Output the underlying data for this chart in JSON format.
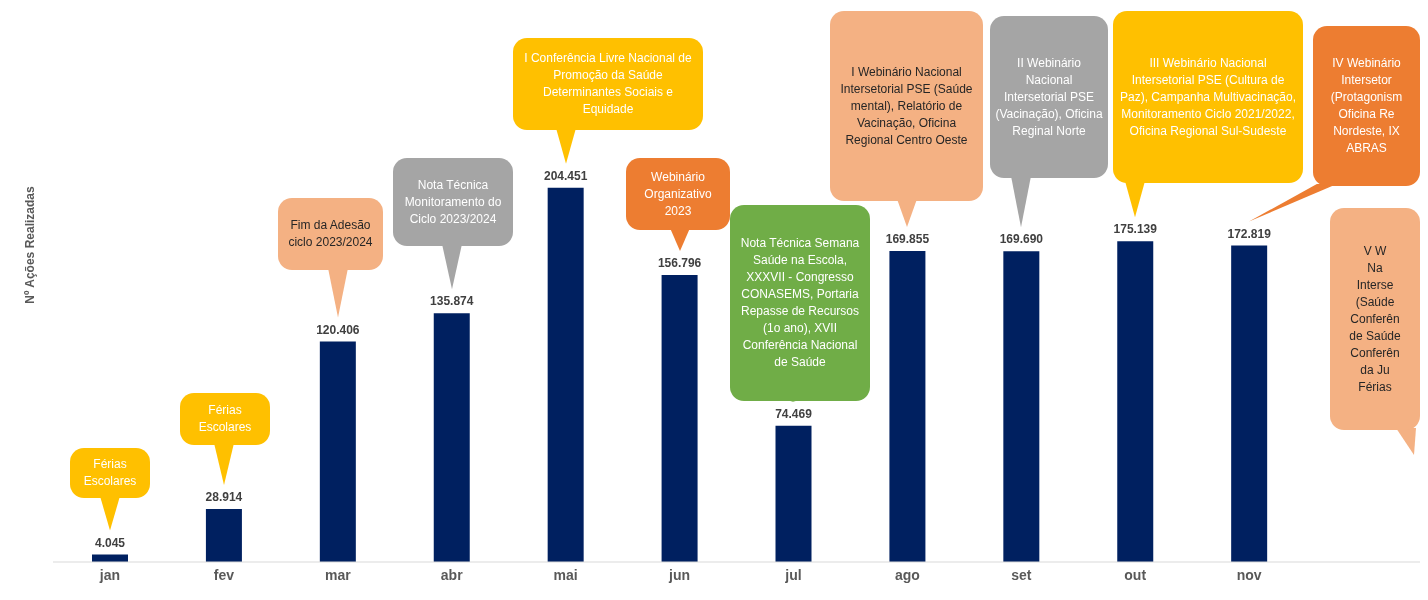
{
  "chart_data": {
    "type": "bar",
    "ylabel": "Nº Ações  Realizadas",
    "categories": [
      "jan",
      "fev",
      "mar",
      "abr",
      "mai",
      "jun",
      "jul",
      "ago",
      "set",
      "out",
      "nov",
      null
    ],
    "values": [
      4045,
      28914,
      120406,
      135874,
      204451,
      156796,
      74469,
      169855,
      169690,
      175139,
      172819,
      null
    ],
    "value_labels": [
      "4.045",
      "28.914",
      "120.406",
      "135.874",
      "204.451",
      "156.796",
      "74.469",
      "169.855",
      "169.690",
      "175.139",
      "172.819",
      null
    ],
    "color": "#002060",
    "grid": false,
    "legend": false,
    "annotations": [
      "Férias Escolares",
      "Férias Escolares",
      "Fim da Adesão ciclo 2023/2024",
      "Nota Técnica Monitoramento do Ciclo 2023/2024",
      "I Conferência Livre Nacional de Promoção da Saúde Determinantes Sociais e Equidade",
      "Webinário Organizativo 2023",
      "Nota Técnica Semana Saúde na Escola, XXXVII - Congresso CONASEMS, Portaria Repasse de Recursos (1o ano), XVII Conferência Nacional de Saúde",
      "I Webinário Nacional Intersetorial PSE (Saúde mental), Relatório de Vacinação, Oficina Regional Centro Oeste",
      "II Webinário Nacional Intersetorial PSE (Vacinação), Oficina Reginal Norte",
      "III Webinário Nacional Intersetorial PSE (Cultura de Paz),  Campanha Multivacinação, Monitoramento Ciclo 2021/2022, Oficina Regional Sul-Sudeste",
      "IV Webinário\nIntersetor\n(Protagonism\nOficina Re\nNordeste, IX\nABRAS",
      "V W\nNa\nInterse\n(Saúde\nConferên\nde Saúde\nConferên\nda Ju\nFérias"
    ]
  }
}
